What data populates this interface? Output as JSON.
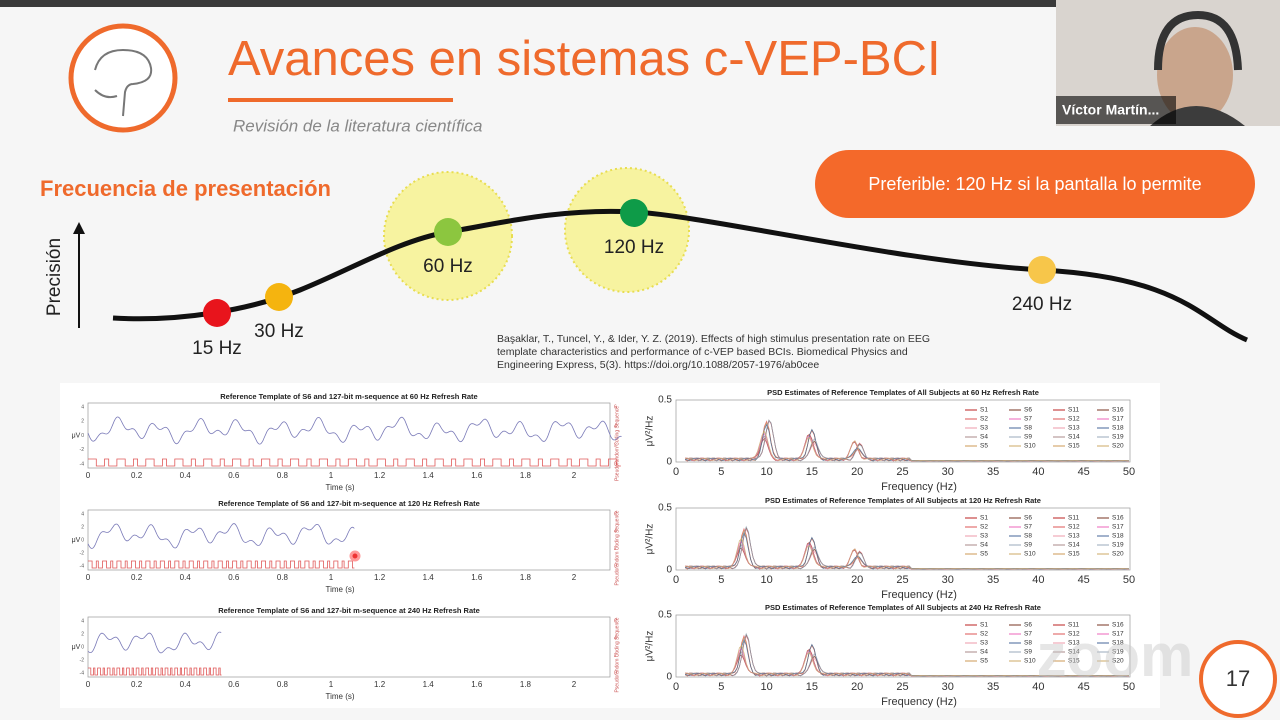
{
  "window": {
    "participant": "Víctor Martín...",
    "watermark": "zoom"
  },
  "slide": {
    "title": "Avances en sistemas c-VEP-BCI",
    "subtitle": "Revisión de la literatura científica",
    "section": "Frecuencia de presentación",
    "callout": "Preferible: 120 Hz si la pantalla lo permite",
    "axis_label": "Precisión",
    "points": [
      {
        "label": "15 Hz",
        "color": "#e8141c"
      },
      {
        "label": "30 Hz",
        "color": "#f5b40f"
      },
      {
        "label": "60 Hz",
        "color": "#8cc63f"
      },
      {
        "label": "120 Hz",
        "color": "#0e9b48"
      },
      {
        "label": "240 Hz",
        "color": "#f7c64a"
      }
    ],
    "citation": "Başaklar, T., Tuncel, Y., & Ider, Y. Z. (2019). Effects of high stimulus presentation rate on EEG template characteristics and performance of c-VEP based BCIs. Biomedical Physics and Engineering Express, 5(3). https://doi.org/10.1088/2057-1976/ab0cee",
    "page": "17"
  },
  "time_plots": {
    "titles": [
      "Reference Template of S6 and 127-bit m-sequence at 60 Hz Refresh Rate",
      "Reference Template of S6 and 127-bit m-sequence at 120 Hz Refresh Rate",
      "Reference Template of S6 and 127-bit m-sequence at 240 Hz Refresh Rate"
    ],
    "xticks": [
      "0",
      "0.2",
      "0.4",
      "0.6",
      "0.8",
      "1",
      "1.2",
      "1.4",
      "1.6",
      "1.8",
      "2"
    ],
    "yticks": [
      "4",
      "2",
      "0",
      "-2",
      "-4"
    ],
    "right_ticks": [
      "6",
      "4",
      "2",
      "0"
    ],
    "ylabel": "μV",
    "right_label": "Pseudorandom Coding Sequence",
    "xlabel": "Time (s)"
  },
  "psd_plots": {
    "titles": [
      "PSD Estimates of Reference Templates of All Subjects at 60 Hz Refresh Rate",
      "PSD Estimates of Reference Templates of All Subjects at 120 Hz Refresh Rate",
      "PSD Estimates of Reference Templates of All Subjects at 240 Hz Refresh Rate"
    ],
    "xticks": [
      "0",
      "5",
      "10",
      "15",
      "20",
      "25",
      "30",
      "35",
      "40",
      "45",
      "50"
    ],
    "yticks": [
      "0.5",
      "0"
    ],
    "ylabel": "μV²/Hz",
    "xlabel": "Frequency (Hz)",
    "legend": [
      "S1",
      "S2",
      "S3",
      "S4",
      "S5",
      "S6",
      "S7",
      "S8",
      "S9",
      "S10",
      "S11",
      "S12",
      "S13",
      "S14",
      "S15",
      "S16",
      "S17",
      "S18",
      "S19",
      "S20"
    ]
  }
}
